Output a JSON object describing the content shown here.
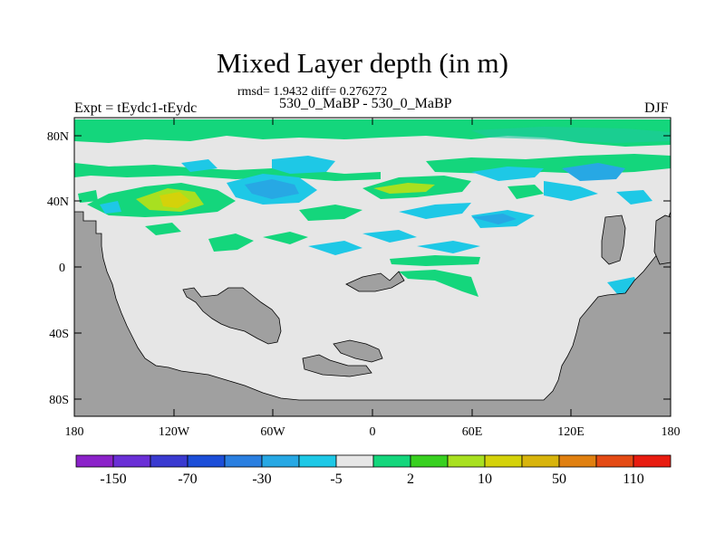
{
  "title": "Mixed Layer depth (in m)",
  "subtitle": "rmsd= 1.9432 diff= 0.276272",
  "left_title": "Expt = tEydc1-tEydc",
  "center_title": "530_0_MaBP - 530_0_MaBP",
  "right_title": "DJF",
  "map": {
    "lat_ticks": [
      "80N",
      "40N",
      "0",
      "40S",
      "80S"
    ],
    "lon_ticks": [
      "180",
      "120W",
      "60W",
      "0",
      "60E",
      "120E",
      "180"
    ],
    "colors": {
      "land": "#a0a0a0",
      "near_zero": "#e6e6e6"
    }
  },
  "colorbar": {
    "labels": [
      "-150",
      "-70",
      "-30",
      "-5",
      "2",
      "10",
      "50",
      "110"
    ],
    "colors": [
      "#8b22c9",
      "#6a2fd6",
      "#3a3ad0",
      "#1c4ed8",
      "#2a7fe0",
      "#27a8e4",
      "#1ec8e6",
      "#e6e6e6",
      "#14d67c",
      "#38d020",
      "#a8e020",
      "#d4d20a",
      "#d8b40c",
      "#e08010",
      "#e44a14",
      "#e81c10"
    ]
  }
}
